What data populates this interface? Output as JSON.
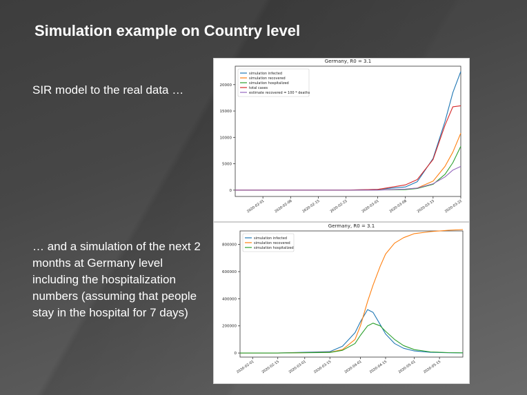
{
  "slide": {
    "title": "Simulation example on Country level",
    "paragraph1": "SIR model to the real data …",
    "paragraph2": "… and a simulation of the next 2 months at Germany level including the hospitalization numbers (assuming that people stay in the hospital for 7 days)"
  },
  "chart_data": [
    {
      "type": "line",
      "title": "Germany, R0 = 3.1",
      "xlabel": "",
      "ylabel": "",
      "x": [
        "2020-01-25",
        "2020-02-01",
        "2020-02-08",
        "2020-02-15",
        "2020-02-22",
        "2020-03-01",
        "2020-03-08",
        "2020-03-11",
        "2020-03-15",
        "2020-03-18",
        "2020-03-20",
        "2020-03-22"
      ],
      "x_ticks": [
        "2020-02-01",
        "2020-02-08",
        "2020-02-15",
        "2020-02-22",
        "2020-03-01",
        "2020-03-08",
        "2020-03-15",
        "2020-03-22"
      ],
      "y_ticks": [
        0,
        5000,
        10000,
        15000,
        20000
      ],
      "ylim": [
        -1200,
        23500
      ],
      "legend_position": "top-left",
      "series": [
        {
          "name": "simulation infected",
          "color": "#1f77b4",
          "values": [
            0,
            0,
            0,
            0,
            0,
            150,
            600,
            1600,
            6000,
            13000,
            18500,
            22500
          ]
        },
        {
          "name": "simulation recovered",
          "color": "#ff7f0e",
          "values": [
            0,
            0,
            0,
            0,
            0,
            40,
            150,
            400,
            1700,
            4500,
            7200,
            10800
          ]
        },
        {
          "name": "simulation hospitalized",
          "color": "#2ca02c",
          "values": [
            0,
            0,
            0,
            0,
            0,
            30,
            100,
            300,
            1100,
            3000,
            5200,
            8300
          ]
        },
        {
          "name": "total cases",
          "color": "#d62728",
          "values": [
            16,
            16,
            16,
            16,
            16,
            130,
            1000,
            2000,
            5800,
            12300,
            15800,
            16000
          ]
        },
        {
          "name": "estimate recovered = 100 * deaths",
          "color": "#9467bd",
          "values": [
            0,
            0,
            0,
            0,
            0,
            0,
            200,
            400,
            1200,
            2500,
            3800,
            4500
          ]
        }
      ]
    },
    {
      "type": "line",
      "title": "Germany, R0 = 3.1",
      "xlabel": "",
      "ylabel": "",
      "x": [
        "2020-01-25",
        "2020-02-15",
        "2020-03-15",
        "2020-03-22",
        "2020-03-29",
        "2020-04-01",
        "2020-04-05",
        "2020-04-08",
        "2020-04-12",
        "2020-04-15",
        "2020-04-20",
        "2020-04-25",
        "2020-05-01",
        "2020-05-10",
        "2020-05-20",
        "2020-05-28"
      ],
      "x_ticks": [
        "2020-02-01",
        "2020-02-15",
        "2020-03-01",
        "2020-03-15",
        "2020-04-01",
        "2020-04-15",
        "2020-05-01",
        "2020-05-15"
      ],
      "y_ticks": [
        0,
        200000,
        400000,
        600000,
        800000
      ],
      "ylim": [
        -30000,
        900000
      ],
      "legend_position": "top-left",
      "series": [
        {
          "name": "simulation infected",
          "color": "#1f77b4",
          "values": [
            0,
            0,
            10000,
            50000,
            150000,
            230000,
            320000,
            300000,
            210000,
            140000,
            70000,
            35000,
            15000,
            5000,
            2000,
            1000
          ]
        },
        {
          "name": "simulation recovered",
          "color": "#ff7f0e",
          "values": [
            0,
            0,
            5000,
            25000,
            100000,
            200000,
            380000,
            500000,
            640000,
            730000,
            810000,
            850000,
            880000,
            895000,
            905000,
            910000
          ]
        },
        {
          "name": "simulation hospitalized",
          "color": "#2ca02c",
          "values": [
            0,
            0,
            4000,
            20000,
            70000,
            130000,
            200000,
            220000,
            200000,
            160000,
            100000,
            55000,
            25000,
            8000,
            3000,
            1500
          ]
        }
      ]
    }
  ]
}
